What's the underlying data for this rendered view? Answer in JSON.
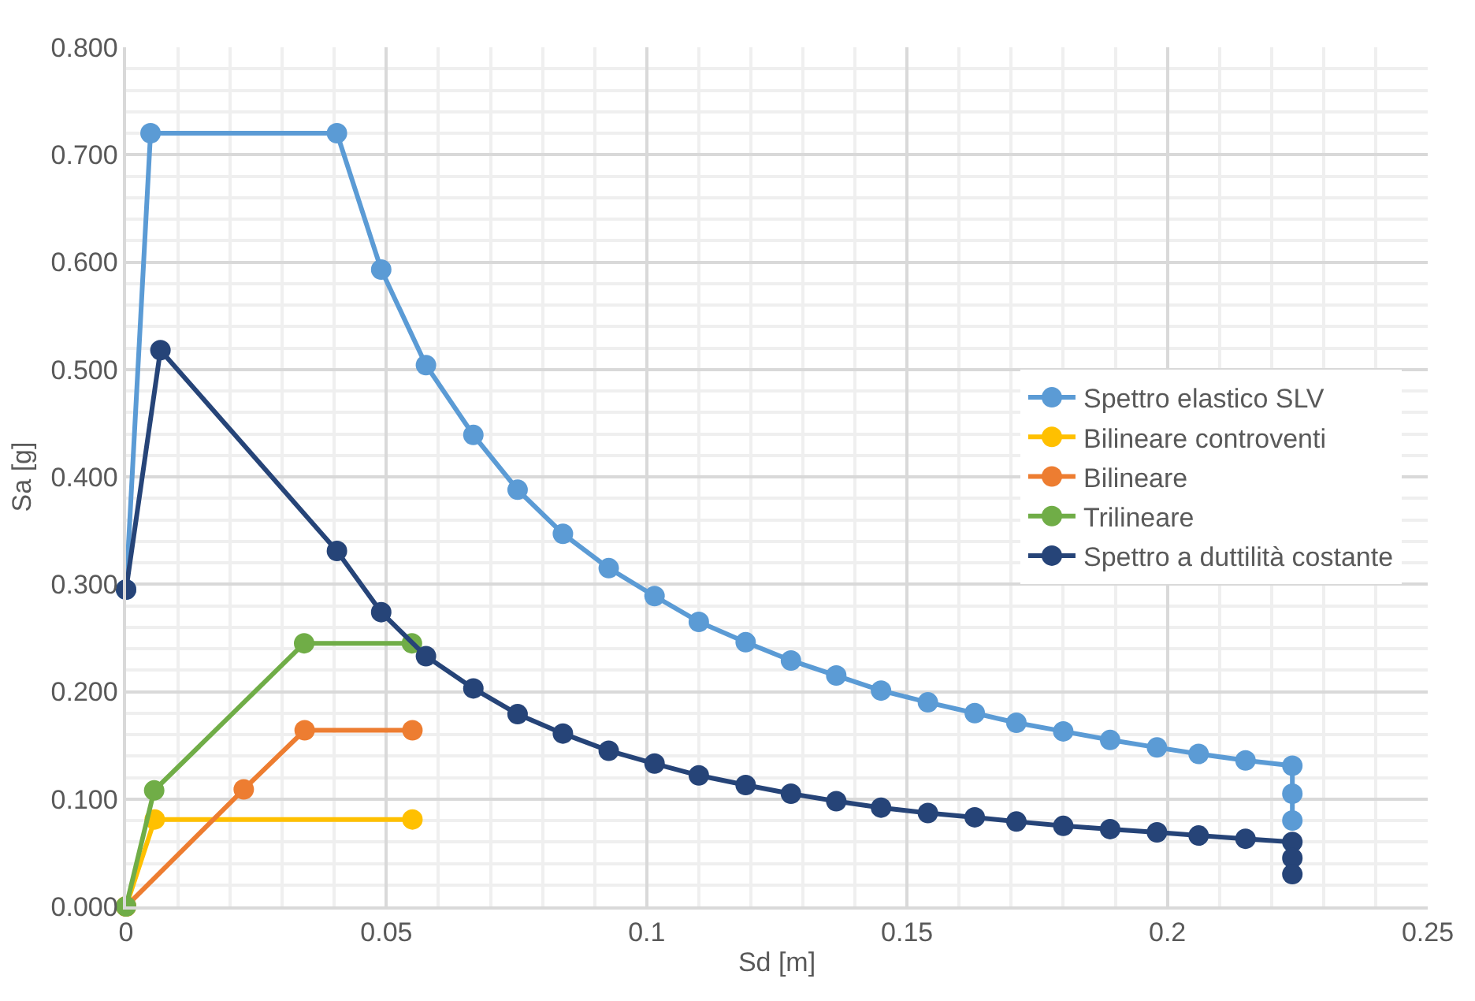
{
  "chart_data": {
    "type": "line",
    "xlabel": "Sd [m]",
    "ylabel": "Sa [g]",
    "xlim": [
      0,
      0.25
    ],
    "xticks": [
      0,
      0.05,
      0.1,
      0.15,
      0.2,
      0.25
    ],
    "ylim": [
      0,
      0.8
    ],
    "yticks": [
      {
        "value": 0,
        "label": "0.000"
      },
      {
        "value": 0.1,
        "label": "0.100"
      },
      {
        "value": 0.2,
        "label": "0.200"
      },
      {
        "value": 0.3,
        "label": "0.300"
      },
      {
        "value": 0.4,
        "label": "0.400"
      },
      {
        "value": 0.5,
        "label": "0.500"
      },
      {
        "value": 0.6,
        "label": "0.600"
      },
      {
        "value": 0.7,
        "label": "0.700"
      },
      {
        "value": 0.8,
        "label": "0.800"
      }
    ],
    "grid": true,
    "legend": "right",
    "marker": "circle",
    "line_style": "solid",
    "series": [
      {
        "name": "Spettro elastico SLV",
        "color": "#5b9bd5",
        "x": [
          0,
          0.0047,
          0.0405,
          0.049,
          0.0576,
          0.0667,
          0.0752,
          0.0839,
          0.0927,
          0.1015,
          0.11,
          0.119,
          0.1277,
          0.1364,
          0.145,
          0.154,
          0.163,
          0.171,
          0.18,
          0.189,
          0.198,
          0.206,
          0.215,
          0.224,
          0.224,
          0.224
        ],
        "values": [
          0.295,
          0.72,
          0.72,
          0.593,
          0.504,
          0.439,
          0.388,
          0.347,
          0.315,
          0.289,
          0.265,
          0.246,
          0.229,
          0.215,
          0.201,
          0.19,
          0.18,
          0.171,
          0.163,
          0.155,
          0.148,
          0.142,
          0.136,
          0.131,
          0.105,
          0.08
        ]
      },
      {
        "name": "Bilineare controventi",
        "color": "#ffc000",
        "x": [
          0,
          0.0055,
          0.055
        ],
        "values": [
          0,
          0.081,
          0.081
        ]
      },
      {
        "name": "Bilineare",
        "color": "#ed7d31",
        "x": [
          0,
          0.0226,
          0.0343,
          0.055
        ],
        "values": [
          0,
          0.109,
          0.164,
          0.164
        ]
      },
      {
        "name": "Trilineare",
        "color": "#70ad47",
        "x": [
          0,
          0.0054,
          0.0342,
          0.0549
        ],
        "values": [
          0,
          0.108,
          0.245,
          0.245
        ]
      },
      {
        "name": "Spettro a duttilità costante",
        "color": "#264478",
        "x": [
          0,
          0.0066,
          0.0405,
          0.049,
          0.0576,
          0.0667,
          0.0752,
          0.0839,
          0.0927,
          0.1015,
          0.11,
          0.119,
          0.1277,
          0.1364,
          0.145,
          0.154,
          0.163,
          0.171,
          0.18,
          0.189,
          0.198,
          0.206,
          0.215,
          0.224,
          0.224,
          0.224
        ],
        "values": [
          0.295,
          0.518,
          0.331,
          0.274,
          0.233,
          0.203,
          0.179,
          0.161,
          0.145,
          0.133,
          0.122,
          0.113,
          0.105,
          0.098,
          0.092,
          0.087,
          0.083,
          0.079,
          0.075,
          0.072,
          0.069,
          0.066,
          0.063,
          0.06,
          0.045,
          0.03
        ]
      }
    ]
  }
}
